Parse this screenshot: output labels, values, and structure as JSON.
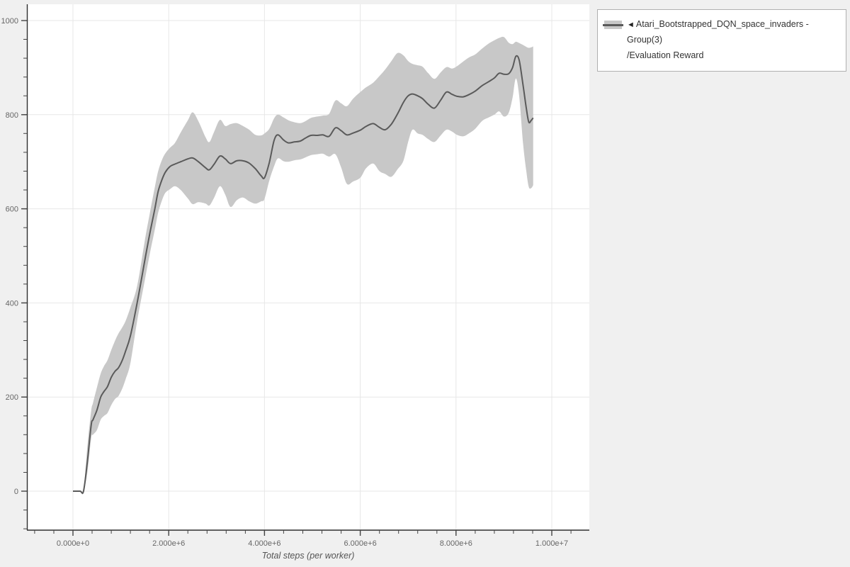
{
  "page": {
    "background": "#f0f0f0",
    "plot_background": "#ffffff"
  },
  "legend": {
    "collapse_icon": "◄",
    "line1": "Atari_Bootstrapped_DQN_space_invaders - Group(3)",
    "line2": "/Evaluation Reward"
  },
  "chart_data": {
    "type": "line",
    "title": "",
    "xlabel": "Total steps (per worker)",
    "ylabel": "",
    "grid": true,
    "legend_position": "top-right",
    "x_range_steps": [
      -961400,
      10783600
    ],
    "y_range": [
      -82.8,
      1034.6
    ],
    "x_ticks": [
      {
        "v": 0,
        "label": "0.000e+0"
      },
      {
        "v": 2000000,
        "label": "2.000e+6"
      },
      {
        "v": 4000000,
        "label": "4.000e+6"
      },
      {
        "v": 6000000,
        "label": "6.000e+6"
      },
      {
        "v": 8000000,
        "label": "8.000e+6"
      },
      {
        "v": 10000000,
        "label": "1.000e+7"
      }
    ],
    "y_ticks": [
      {
        "v": 0,
        "label": "0"
      },
      {
        "v": 200,
        "label": "200"
      },
      {
        "v": 400,
        "label": "400"
      },
      {
        "v": 600,
        "label": "600"
      },
      {
        "v": 800,
        "label": "800"
      },
      {
        "v": 1000,
        "label": "1000"
      }
    ],
    "x_minor_step": 400000,
    "y_minor_step": 40,
    "series": [
      {
        "name": "Atari_Bootstrapped_DQN_space_invaders - Group(3)/Evaluation Reward",
        "color": "#5a5a5a",
        "band_color": "#c8c8c8",
        "points_format": [
          "steps",
          "mean",
          "band_low",
          "band_high"
        ],
        "points": [
          [
            0,
            0,
            0,
            0
          ],
          [
            150000,
            0,
            0,
            0
          ],
          [
            220000,
            0,
            0,
            0
          ],
          [
            300000,
            62,
            40,
            95
          ],
          [
            380000,
            140,
            112,
            170
          ],
          [
            420000,
            152,
            120,
            188
          ],
          [
            500000,
            172,
            130,
            220
          ],
          [
            580000,
            200,
            152,
            250
          ],
          [
            650000,
            212,
            160,
            266
          ],
          [
            720000,
            222,
            166,
            278
          ],
          [
            800000,
            242,
            183,
            300
          ],
          [
            880000,
            255,
            196,
            320
          ],
          [
            950000,
            262,
            202,
            335
          ],
          [
            1030000,
            278,
            218,
            348
          ],
          [
            1100000,
            298,
            238,
            362
          ],
          [
            1200000,
            330,
            272,
            390
          ],
          [
            1340000,
            400,
            361,
            436
          ],
          [
            1500000,
            490,
            448,
            532
          ],
          [
            1600000,
            545,
            502,
            588
          ],
          [
            1710000,
            600,
            556,
            646
          ],
          [
            1780000,
            637,
            592,
            680
          ],
          [
            1860000,
            662,
            618,
            704
          ],
          [
            1930000,
            678,
            634,
            718
          ],
          [
            2030000,
            690,
            642,
            730
          ],
          [
            2130000,
            695,
            648,
            740
          ],
          [
            2250000,
            700,
            640,
            762
          ],
          [
            2400000,
            706,
            622,
            788
          ],
          [
            2500000,
            708,
            610,
            805
          ],
          [
            2620000,
            700,
            614,
            786
          ],
          [
            2770000,
            687,
            611,
            752
          ],
          [
            2850000,
            683,
            607,
            742
          ],
          [
            2950000,
            695,
            624,
            764
          ],
          [
            3070000,
            712,
            648,
            789
          ],
          [
            3180000,
            706,
            630,
            776
          ],
          [
            3290000,
            696,
            604,
            780
          ],
          [
            3420000,
            702,
            618,
            782
          ],
          [
            3550000,
            702,
            624,
            776
          ],
          [
            3680000,
            697,
            616,
            768
          ],
          [
            3810000,
            685,
            611,
            757
          ],
          [
            3930000,
            670,
            616,
            756
          ],
          [
            4000000,
            666,
            621,
            760
          ],
          [
            4100000,
            698,
            660,
            770
          ],
          [
            4200000,
            745,
            690,
            792
          ],
          [
            4280000,
            757,
            707,
            800
          ],
          [
            4400000,
            746,
            701,
            794
          ],
          [
            4500000,
            740,
            700,
            788
          ],
          [
            4620000,
            742,
            703,
            784
          ],
          [
            4750000,
            744,
            705,
            782
          ],
          [
            4850000,
            750,
            709,
            786
          ],
          [
            4970000,
            756,
            714,
            793
          ],
          [
            5100000,
            756,
            716,
            796
          ],
          [
            5220000,
            757,
            717,
            798
          ],
          [
            5350000,
            754,
            711,
            802
          ],
          [
            5480000,
            772,
            716,
            830
          ],
          [
            5600000,
            766,
            688,
            824
          ],
          [
            5720000,
            757,
            653,
            818
          ],
          [
            5850000,
            761,
            658,
            834
          ],
          [
            6000000,
            767,
            666,
            848
          ],
          [
            6120000,
            775,
            686,
            858
          ],
          [
            6270000,
            781,
            696,
            868
          ],
          [
            6400000,
            773,
            680,
            882
          ],
          [
            6520000,
            768,
            674,
            896
          ],
          [
            6650000,
            780,
            668,
            914
          ],
          [
            6780000,
            802,
            684,
            931
          ],
          [
            6900000,
            826,
            702,
            926
          ],
          [
            7000000,
            840,
            742,
            914
          ],
          [
            7090000,
            844,
            768,
            908
          ],
          [
            7200000,
            840,
            760,
            905
          ],
          [
            7300000,
            834,
            757,
            902
          ],
          [
            7420000,
            822,
            748,
            888
          ],
          [
            7550000,
            814,
            742,
            876
          ],
          [
            7680000,
            831,
            756,
            890
          ],
          [
            7800000,
            848,
            768,
            901
          ],
          [
            7920000,
            843,
            764,
            898
          ],
          [
            8020000,
            839,
            757,
            903
          ],
          [
            8150000,
            838,
            754,
            913
          ],
          [
            8280000,
            843,
            761,
            922
          ],
          [
            8400000,
            850,
            770,
            928
          ],
          [
            8550000,
            862,
            787,
            941
          ],
          [
            8680000,
            870,
            794,
            951
          ],
          [
            8800000,
            878,
            800,
            958
          ],
          [
            8900000,
            888,
            807,
            963
          ],
          [
            9000000,
            886,
            796,
            965
          ],
          [
            9100000,
            887,
            804,
            953
          ],
          [
            9180000,
            900,
            836,
            950
          ],
          [
            9250000,
            924,
            877,
            955
          ],
          [
            9320000,
            915,
            838,
            952
          ],
          [
            9400000,
            862,
            738,
            948
          ],
          [
            9470000,
            812,
            678,
            944
          ],
          [
            9520000,
            784,
            646,
            942
          ],
          [
            9570000,
            788,
            644,
            943
          ],
          [
            9610000,
            793,
            650,
            945
          ]
        ]
      }
    ],
    "style": {
      "grid_color": "#e7e7e7",
      "axis_color": "#2f2f2f",
      "tick_color": "#444"
    }
  }
}
